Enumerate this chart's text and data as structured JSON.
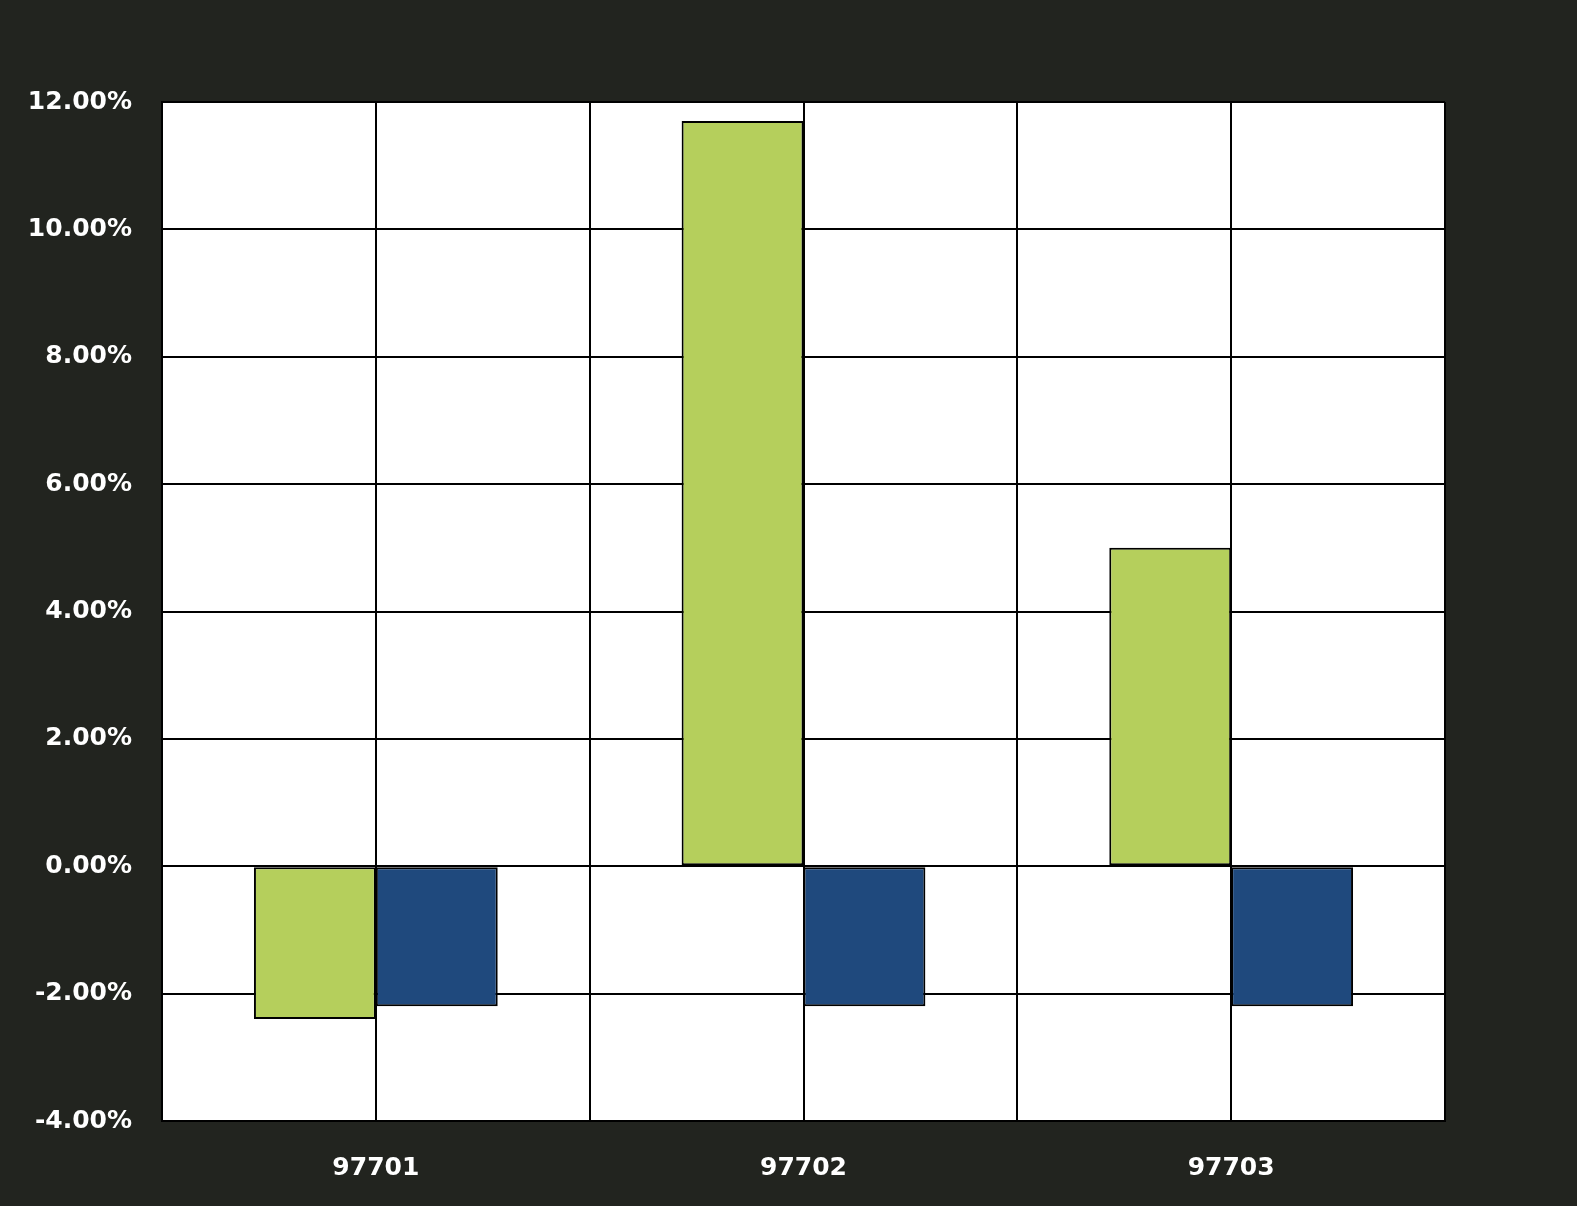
{
  "chart_data": {
    "type": "bar",
    "categories": [
      "97701",
      "97702",
      "97703"
    ],
    "series": [
      {
        "color": "#b5cf5c",
        "values": [
          -2.4,
          11.7,
          5.0
        ]
      },
      {
        "color": "#1f497d",
        "values": [
          -2.2,
          -2.2,
          -2.2
        ]
      }
    ],
    "ylim": [
      -4,
      12
    ],
    "yticks": [
      {
        "value": -4,
        "label": "-4.00%"
      },
      {
        "value": -2,
        "label": "-2.00%"
      },
      {
        "value": 0,
        "label": "0.00%"
      },
      {
        "value": 2,
        "label": "2.00%"
      },
      {
        "value": 4,
        "label": "4.00%"
      },
      {
        "value": 6,
        "label": "6.00%"
      },
      {
        "value": 8,
        "label": "8.00%"
      },
      {
        "value": 10,
        "label": "10.00%"
      },
      {
        "value": 12,
        "label": "12.00%"
      }
    ],
    "grid": true
  }
}
